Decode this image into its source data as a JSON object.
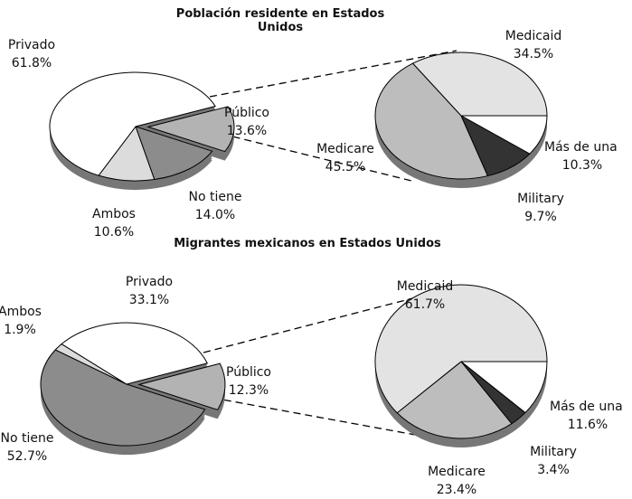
{
  "chart_data": [
    {
      "type": "pie",
      "title": "Población residente en Estados Unidos",
      "categories": [
        "Público",
        "No tiene",
        "Ambos",
        "Privado"
      ],
      "values": [
        13.6,
        14.0,
        10.6,
        61.8
      ],
      "value_labels": [
        "13.6%",
        "14.0%",
        "10.6%",
        "61.8%"
      ],
      "colors": [
        "#b3b3b3",
        "#8c8c8c",
        "#dcdcdc",
        "#ffffff"
      ]
    },
    {
      "type": "pie",
      "categories": [
        "Más de una",
        "Military",
        "Medicare",
        "Medicaid"
      ],
      "values": [
        10.3,
        9.7,
        45.5,
        34.5
      ],
      "value_labels": [
        "10.3%",
        "9.7%",
        "45.5%",
        "34.5%"
      ],
      "colors": [
        "#ffffff",
        "#333333",
        "#bdbdbd",
        "#e3e3e3"
      ]
    },
    {
      "type": "pie",
      "title": "Migrantes mexicanos en Estados Unidos",
      "categories": [
        "Público",
        "No tiene",
        "Ambos",
        "Privado"
      ],
      "values": [
        12.3,
        52.7,
        1.9,
        33.1
      ],
      "value_labels": [
        "12.3%",
        "52.7%",
        "1.9%",
        "33.1%"
      ],
      "colors": [
        "#b3b3b3",
        "#8c8c8c",
        "#dcdcdc",
        "#ffffff"
      ]
    },
    {
      "type": "pie",
      "categories": [
        "Más de una",
        "Military",
        "Medicare",
        "Medicaid"
      ],
      "values": [
        11.6,
        3.4,
        23.4,
        61.7
      ],
      "value_labels": [
        "11.6%",
        "3.4%",
        "23.4%",
        "61.7%"
      ],
      "colors": [
        "#ffffff",
        "#333333",
        "#bdbdbd",
        "#e3e3e3"
      ]
    }
  ]
}
